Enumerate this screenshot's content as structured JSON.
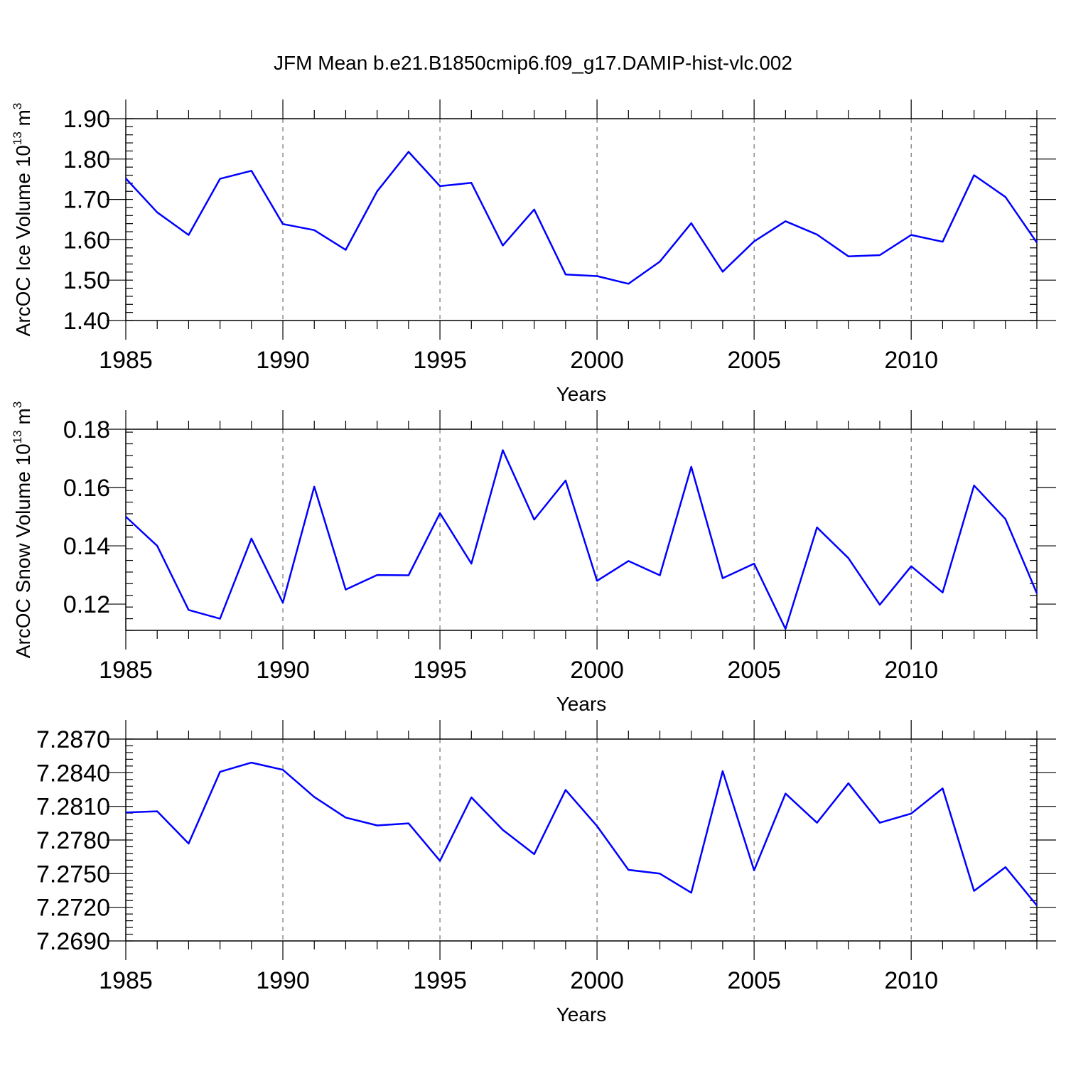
{
  "figure": {
    "title": "JFM Mean b.e21.B1850cmip6.f09_g17.DAMIP-hist-vlc.002"
  },
  "colors": {
    "series": "#0000ff",
    "axis": "#000000",
    "grid": "#555555"
  },
  "chart_data": [
    {
      "type": "line",
      "title": "",
      "xlabel": "Years",
      "ylabel_text": "ArcOC Ice Volume 10",
      "ylabel_sup": "13",
      "ylabel_unit": "m",
      "ylabel_unit_sup": "3",
      "xlim": [
        1985,
        2014
      ],
      "ylim": [
        1.4,
        1.9
      ],
      "xticks": [
        1985,
        1990,
        1995,
        2000,
        2005,
        2010
      ],
      "xtick_labels": [
        "1985",
        "1990",
        "1995",
        "2000",
        "2005",
        "2010"
      ],
      "yticks": [
        1.4,
        1.5,
        1.6,
        1.7,
        1.8,
        1.9
      ],
      "ytick_labels": [
        "1.40",
        "1.50",
        "1.60",
        "1.70",
        "1.80",
        "1.90"
      ],
      "y_minor_step": 0.02,
      "grid": "vertical dashed at major x ticks",
      "x": [
        1985,
        1986,
        1987,
        1988,
        1989,
        1990,
        1991,
        1992,
        1993,
        1994,
        1995,
        1996,
        1997,
        1998,
        1999,
        2000,
        2001,
        2002,
        2003,
        2004,
        2005,
        2006,
        2007,
        2008,
        2009,
        2010,
        2011,
        2012,
        2013,
        2014
      ],
      "series": [
        {
          "values": [
            1.752,
            1.668,
            1.612,
            1.751,
            1.771,
            1.639,
            1.624,
            1.575,
            1.72,
            1.818,
            1.733,
            1.741,
            1.586,
            1.675,
            1.514,
            1.51,
            1.491,
            1.546,
            1.641,
            1.521,
            1.596,
            1.646,
            1.613,
            1.559,
            1.562,
            1.612,
            1.595,
            1.76,
            1.706,
            1.593
          ]
        }
      ]
    },
    {
      "type": "line",
      "title": "",
      "xlabel": "Years",
      "ylabel_text": "ArcOC Snow Volume 10",
      "ylabel_sup": "13",
      "ylabel_unit": "m",
      "ylabel_unit_sup": "3",
      "xlim": [
        1985,
        2014
      ],
      "ylim": [
        0.111,
        0.18
      ],
      "xticks": [
        1985,
        1990,
        1995,
        2000,
        2005,
        2010
      ],
      "xtick_labels": [
        "1985",
        "1990",
        "1995",
        "2000",
        "2005",
        "2010"
      ],
      "yticks": [
        0.12,
        0.14,
        0.16,
        0.18
      ],
      "ytick_labels": [
        "0.12",
        "0.14",
        "0.16",
        "0.18"
      ],
      "y_minor_step": 0.004,
      "grid": "vertical dashed at major x ticks",
      "x": [
        1985,
        1986,
        1987,
        1988,
        1989,
        1990,
        1991,
        1992,
        1993,
        1994,
        1995,
        1996,
        1997,
        1998,
        1999,
        2000,
        2001,
        2002,
        2003,
        2004,
        2005,
        2006,
        2007,
        2008,
        2009,
        2010,
        2011,
        2012,
        2013,
        2014
      ],
      "series": [
        {
          "values": [
            0.15,
            0.14,
            0.118,
            0.115,
            0.1425,
            0.1205,
            0.1603,
            0.125,
            0.13,
            0.1299,
            0.1512,
            0.1339,
            0.1728,
            0.149,
            0.1624,
            0.128,
            0.1348,
            0.1299,
            0.1671,
            0.1289,
            0.1339,
            0.1115,
            0.1463,
            0.1358,
            0.1198,
            0.133,
            0.124,
            0.1607,
            0.1492,
            0.1237
          ]
        }
      ]
    },
    {
      "type": "line",
      "title": "",
      "xlabel": "Years",
      "ylabel_text": "",
      "xlim": [
        1985,
        2014
      ],
      "ylim": [
        7.269,
        7.287
      ],
      "xticks": [
        1985,
        1990,
        1995,
        2000,
        2005,
        2010
      ],
      "xtick_labels": [
        "1985",
        "1990",
        "1995",
        "2000",
        "2005",
        "2010"
      ],
      "yticks": [
        7.269,
        7.272,
        7.275,
        7.278,
        7.281,
        7.284,
        7.287
      ],
      "ytick_labels": [
        "7.2690",
        "7.2720",
        "7.2750",
        "7.2780",
        "7.2810",
        "7.2840",
        "7.2870"
      ],
      "y_minor_step": 0.0006,
      "grid": "vertical dashed at major x ticks",
      "x": [
        1985,
        1986,
        1987,
        1988,
        1989,
        1990,
        1991,
        1992,
        1993,
        1994,
        1995,
        1996,
        1997,
        1998,
        1999,
        2000,
        2001,
        2002,
        2003,
        2004,
        2005,
        2006,
        2007,
        2008,
        2009,
        2010,
        2011,
        2012,
        2013,
        2014
      ],
      "series": [
        {
          "values": [
            7.28046,
            7.28056,
            7.27768,
            7.28408,
            7.2849,
            7.28426,
            7.28184,
            7.28,
            7.2793,
            7.27948,
            7.27614,
            7.2818,
            7.2789,
            7.27674,
            7.28246,
            7.27924,
            7.27534,
            7.275,
            7.2733,
            7.28414,
            7.2753,
            7.28214,
            7.27954,
            7.28306,
            7.27954,
            7.28036,
            7.2826,
            7.27346,
            7.27558,
            7.27216
          ]
        }
      ]
    }
  ]
}
